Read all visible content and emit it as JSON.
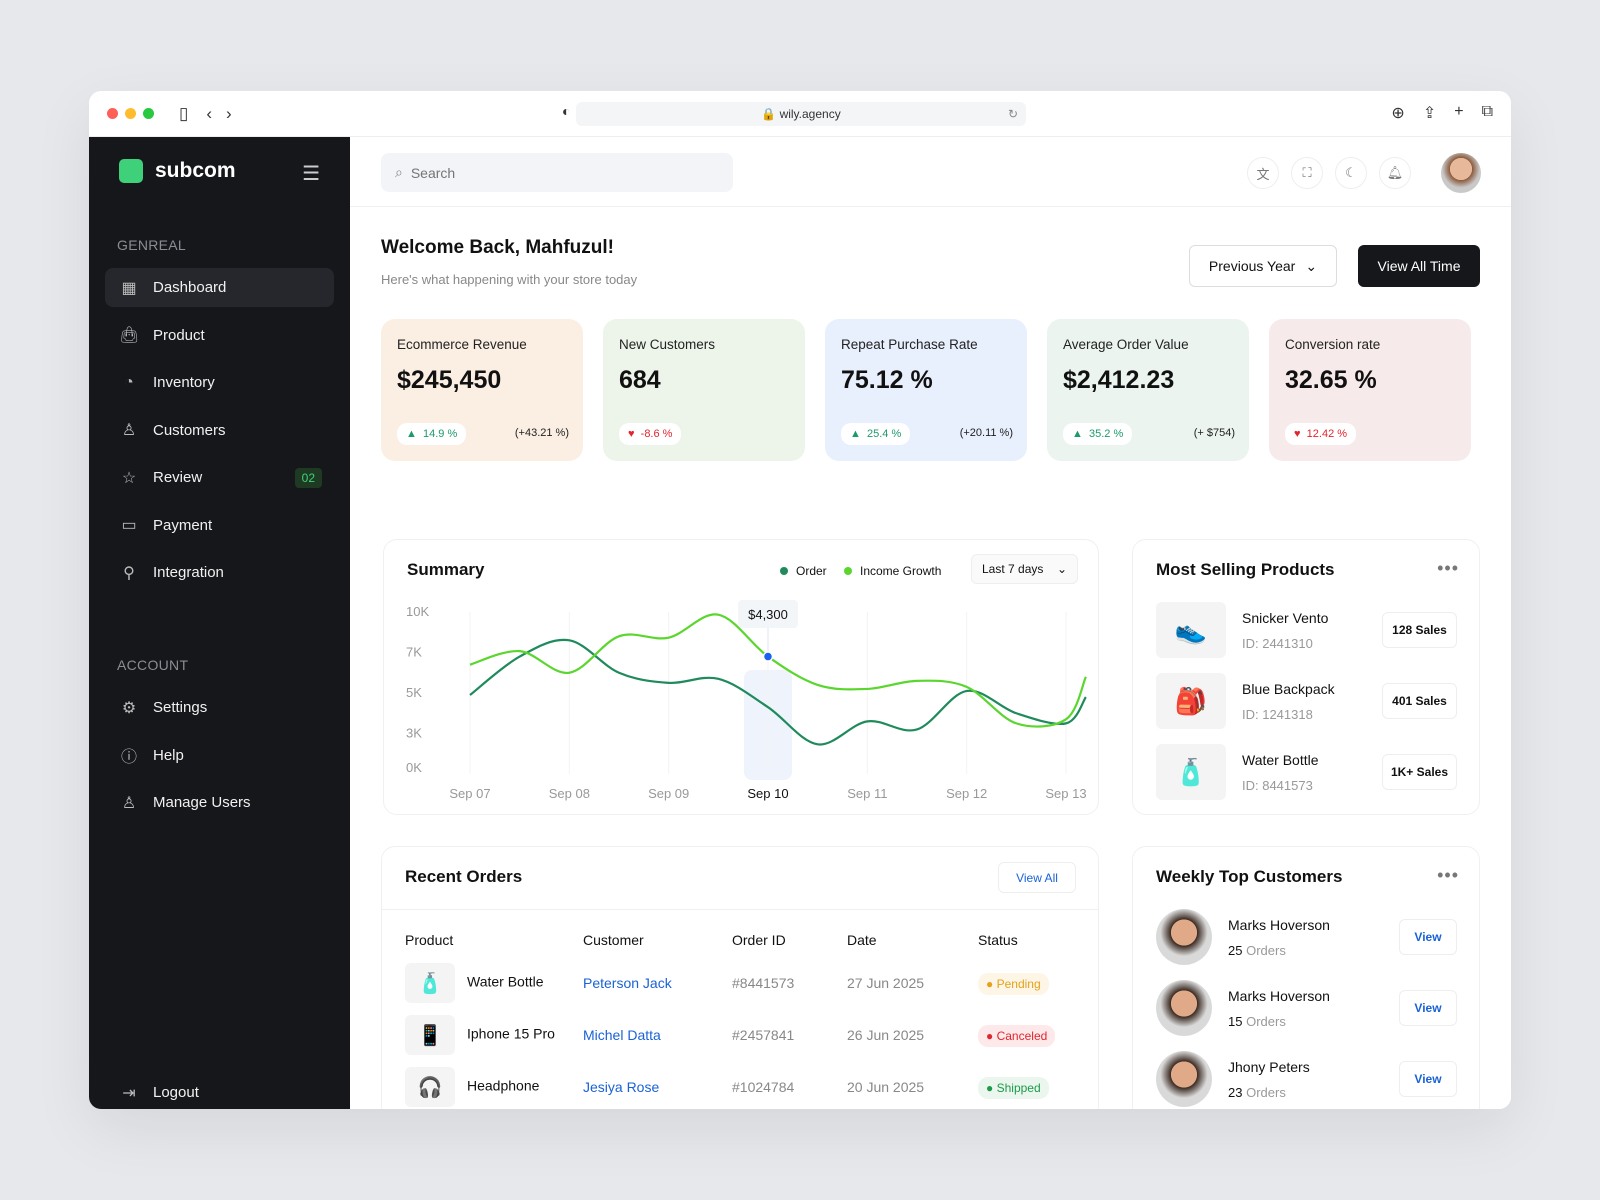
{
  "browser": {
    "url": "wily.agency"
  },
  "sidebar": {
    "brand": "subcom",
    "section_general": "GENREAL",
    "section_account": "ACCOUNT",
    "items": [
      {
        "label": "Dashboard",
        "icon": "grid-icon"
      },
      {
        "label": "Product",
        "icon": "bag-icon"
      },
      {
        "label": "Inventory",
        "icon": "pie-chart-icon"
      },
      {
        "label": "Customers",
        "icon": "user-icon"
      },
      {
        "label": "Review",
        "icon": "star-icon",
        "badge": "02"
      },
      {
        "label": "Payment",
        "icon": "card-icon"
      },
      {
        "label": "Integration",
        "icon": "plug-icon"
      }
    ],
    "account_items": [
      {
        "label": "Settings",
        "icon": "gear-icon"
      },
      {
        "label": "Help",
        "icon": "info-icon"
      },
      {
        "label": "Manage Users",
        "icon": "users-icon"
      }
    ],
    "logout": "Logout"
  },
  "topbar": {
    "search_placeholder": "Search"
  },
  "header": {
    "title": "Welcome Back, Mahfuzul!",
    "subtitle": "Here's what happening with your store today",
    "previous_year": "Previous Year",
    "view_all_time": "View All Time"
  },
  "cards": [
    {
      "title": "Ecommerce Revenue",
      "value": "$245,450",
      "change": "14.9 %",
      "trend": "up",
      "delta": "(+43.21 %)",
      "bg": "#fbefe4"
    },
    {
      "title": "New Customers",
      "value": "684",
      "change": "-8.6 %",
      "trend": "down",
      "delta": "",
      "bg": "#edf5ea"
    },
    {
      "title": "Repeat Purchase Rate",
      "value": "75.12 %",
      "change": "25.4 %",
      "trend": "up",
      "delta": "(+20.11 %)",
      "bg": "#e8effd"
    },
    {
      "title": "Average Order Value",
      "value": "$2,412.23",
      "change": "35.2 %",
      "trend": "up",
      "delta": "(+ $754)",
      "bg": "#ebf4ef"
    },
    {
      "title": "Conversion rate",
      "value": "32.65 %",
      "change": "12.42 %",
      "trend": "down",
      "delta": "",
      "bg": "#f6ebea"
    }
  ],
  "summary": {
    "title": "Summary",
    "range": "Last 7 days",
    "tooltip": "$4,300"
  },
  "chart_data": {
    "type": "line",
    "yticks": [
      "0K",
      "3K",
      "5K",
      "7K",
      "10K"
    ],
    "ytick_values": [
      0,
      3000,
      5000,
      7000,
      10000
    ],
    "categories": [
      "Sep 07",
      "Sep 08",
      "Sep 09",
      "Sep 10",
      "Sep 11",
      "Sep 12",
      "Sep 13"
    ],
    "highlight": "Sep 10",
    "x": [
      0,
      0.5,
      1,
      1.5,
      2,
      2.5,
      3,
      3.5,
      4,
      4.5,
      5,
      5.5,
      6,
      6.2
    ],
    "series": [
      {
        "name": "Order",
        "color": "#1f8a5b",
        "values": [
          4900,
          6800,
          7900,
          6000,
          5500,
          5700,
          4300,
          2200,
          3600,
          3200,
          5100,
          4000,
          3500,
          4800
        ]
      },
      {
        "name": "Income Growth",
        "color": "#5ad62e",
        "values": [
          6400,
          7100,
          6000,
          8200,
          8100,
          9800,
          6800,
          5400,
          5200,
          5600,
          5300,
          3500,
          3700,
          5800
        ]
      }
    ]
  },
  "most_selling": {
    "title": "Most Selling Products",
    "items": [
      {
        "name": "Snicker Vento",
        "id": "ID: 2441310",
        "sales": "128 Sales",
        "icon": "sneaker-icon"
      },
      {
        "name": "Blue Backpack",
        "id": "ID: 1241318",
        "sales": "401 Sales",
        "icon": "backpack-icon"
      },
      {
        "name": "Water Bottle",
        "id": "ID: 8441573",
        "sales": "1K+ Sales",
        "icon": "bottle-icon"
      }
    ]
  },
  "orders": {
    "title": "Recent Orders",
    "view_all": "View All",
    "columns": [
      "Product",
      "Customer",
      "Order ID",
      "Date",
      "Status"
    ],
    "rows": [
      {
        "product": "Water Bottle",
        "customer": "Peterson Jack",
        "id": "#8441573",
        "date": "27 Jun 2025",
        "status": "Pending",
        "icon": "bottle-icon"
      },
      {
        "product": "Iphone 15 Pro",
        "customer": "Michel Datta",
        "id": "#2457841",
        "date": "26 Jun 2025",
        "status": "Canceled",
        "icon": "phone-icon"
      },
      {
        "product": "Headphone",
        "customer": "Jesiya Rose",
        "id": "#1024784",
        "date": "20 Jun 2025",
        "status": "Shipped",
        "icon": "headphone-icon"
      }
    ]
  },
  "status_colors": {
    "Pending": [
      "#fdf6e6",
      "#e5a11a"
    ],
    "Canceled": [
      "#fde9ea",
      "#e0262e"
    ],
    "Shipped": [
      "#eaf6ee",
      "#1d9a4a"
    ]
  },
  "top_customers": {
    "title": "Weekly Top Customers",
    "orders_label": "Orders",
    "view": "View",
    "items": [
      {
        "name": "Marks Hoverson",
        "orders": "25"
      },
      {
        "name": "Marks Hoverson",
        "orders": "15"
      },
      {
        "name": "Jhony Peters",
        "orders": "23"
      }
    ]
  }
}
